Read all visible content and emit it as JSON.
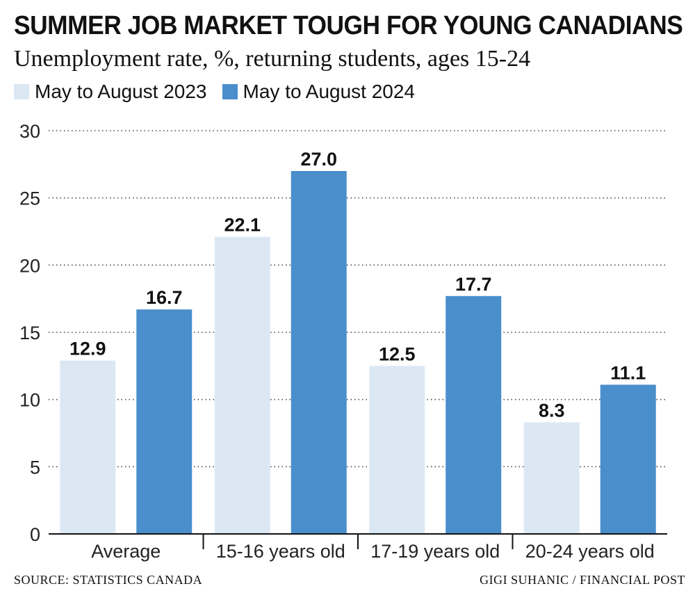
{
  "header": {
    "title": "SUMMER JOB MARKET TOUGH FOR YOUNG CANADIANS",
    "subtitle": "Unemployment rate, %, returning students, ages 15-24"
  },
  "footer": {
    "source": "SOURCE: STATISTICS CANADA",
    "credit": "GIGI SUHANIC / FINANCIAL POST"
  },
  "colors": {
    "series_2023": "#dbe8f4",
    "series_2024": "#4a8ecb",
    "grid": "#444444",
    "axis": "#111111"
  },
  "chart_data": {
    "type": "bar",
    "title": "SUMMER JOB MARKET TOUGH FOR YOUNG CANADIANS",
    "subtitle": "Unemployment rate, %, returning students, ages 15-24",
    "categories": [
      "Average",
      "15-16 years old",
      "17-19 years old",
      "20-24 years old"
    ],
    "series": [
      {
        "name": "May to August 2023",
        "values": [
          12.9,
          22.1,
          12.5,
          8.3
        ]
      },
      {
        "name": "May to August 2024",
        "values": [
          16.7,
          27.0,
          17.7,
          11.1
        ]
      }
    ],
    "value_labels": [
      [
        "12.9",
        "22.1",
        "12.5",
        "8.3"
      ],
      [
        "16.7",
        "27.0",
        "17.7",
        "11.1"
      ]
    ],
    "ylim": [
      0,
      30
    ],
    "yticks": [
      0,
      5,
      10,
      15,
      20,
      25,
      30
    ],
    "xlabel": "",
    "ylabel": "",
    "grid": true,
    "grid_style": "dotted",
    "legend": "top-left"
  }
}
